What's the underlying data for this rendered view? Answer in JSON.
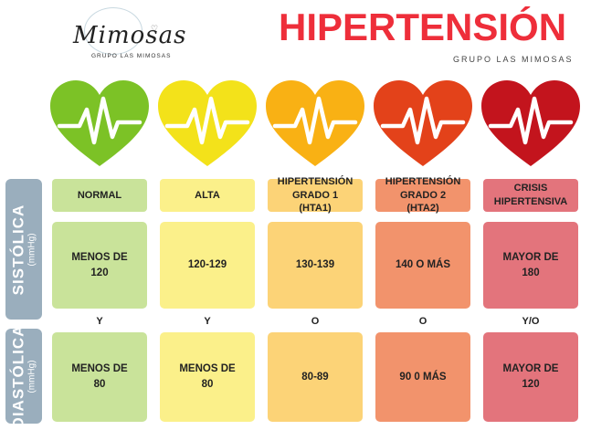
{
  "brand": {
    "logo_text": "Mimosas",
    "logo_subtext": "GRUPO LAS MIMOSAS"
  },
  "header": {
    "title": "HIPERTENSIÓN",
    "subtitle": "GRUPO LAS MIMOSAS"
  },
  "rows": {
    "systolic": {
      "label": "SISTÓLICA",
      "unit": "(mmHg)"
    },
    "diastolic": {
      "label": "DIASTÓLICA",
      "unit": "(mmHg)"
    }
  },
  "categories": [
    {
      "label": "NORMAL",
      "systolic": "MENOS DE 120",
      "connector": "Y",
      "diastolic": "MENOS DE 80",
      "heart_color": "#7cc226",
      "label_bg": "#c9e39a",
      "cell_bg": "#c9e39a"
    },
    {
      "label": "ALTA",
      "systolic": "120-129",
      "connector": "Y",
      "diastolic": "MENOS DE 80",
      "heart_color": "#f3e21a",
      "label_bg": "#fbf08a",
      "cell_bg": "#fbf08a"
    },
    {
      "label": "HIPERTENSIÓN GRADO 1 (HTA1)",
      "systolic": "130-139",
      "connector": "O",
      "diastolic": "80-89",
      "heart_color": "#f9b114",
      "label_bg": "#fcd377",
      "cell_bg": "#fcd377"
    },
    {
      "label": "HIPERTENSIÓN GRADO 2 (HTA2)",
      "systolic": "140 O MÁS",
      "connector": "O",
      "diastolic": "90 0 MÁS",
      "heart_color": "#e3421a",
      "label_bg": "#f2936c",
      "cell_bg": "#f2936c"
    },
    {
      "label": "CRISIS HIPERTENSIVA",
      "systolic": "MAYOR DE 180",
      "connector": "Y/O",
      "diastolic": "MAYOR DE 120",
      "heart_color": "#c3141d",
      "label_bg": "#e3747c",
      "cell_bg": "#e3747c"
    }
  ],
  "icons": {
    "heart": "heart-pulse-icon"
  }
}
